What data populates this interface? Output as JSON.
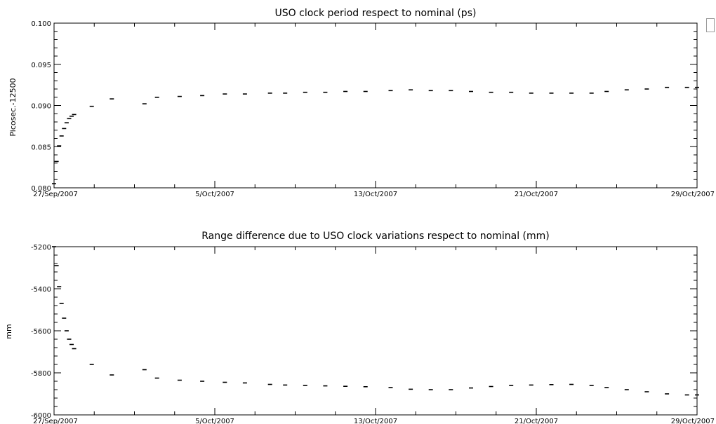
{
  "chart_data": [
    {
      "type": "scatter",
      "title": "USO clock period respect to nominal (ps)",
      "ylabel": "Picosec.-12500",
      "xlabel": "",
      "xlim": [
        "27/Sep/2007",
        "29/Oct/2007"
      ],
      "ylim": [
        0.08,
        0.1
      ],
      "x_tick_labels": [
        "27/Sep/2007",
        "5/Oct/2007",
        "13/Oct/2007",
        "21/Oct/2007",
        "29/Oct/2007"
      ],
      "y_tick_labels": [
        "0.100",
        "0.095",
        "0.090",
        "0.085",
        "0.080"
      ],
      "y_ticks": [
        0.1,
        0.095,
        0.09,
        0.085,
        0.08
      ],
      "grid": false,
      "series": [
        {
          "points": [
            [
              "27/Sep/2007 00:00",
              0.0805
            ],
            [
              "27/Sep/2007 03:00",
              0.0832
            ],
            [
              "27/Sep/2007 06:00",
              0.0851
            ],
            [
              "27/Sep/2007 09:00",
              0.0863
            ],
            [
              "27/Sep/2007 12:00",
              0.0872
            ],
            [
              "27/Sep/2007 15:00",
              0.0879
            ],
            [
              "27/Sep/2007 18:00",
              0.0884
            ],
            [
              "27/Sep/2007 21:00",
              0.0887
            ],
            [
              "28/Sep/2007 00:00",
              0.0889
            ],
            [
              "28/Sep/2007 21:00",
              0.0899
            ],
            [
              "29/Sep/2007 21:00",
              0.0908
            ],
            [
              "1/Oct/2007 12:00",
              0.0902
            ],
            [
              "2/Oct/2007 03:00",
              0.091
            ],
            [
              "3/Oct/2007 06:00",
              0.0911
            ],
            [
              "4/Oct/2007 09:00",
              0.0912
            ],
            [
              "5/Oct/2007 12:00",
              0.0914
            ],
            [
              "6/Oct/2007 12:00",
              0.0914
            ],
            [
              "7/Oct/2007 18:00",
              0.0915
            ],
            [
              "8/Oct/2007 12:00",
              0.0915
            ],
            [
              "9/Oct/2007 12:00",
              0.0916
            ],
            [
              "10/Oct/2007 12:00",
              0.0916
            ],
            [
              "11/Oct/2007 12:00",
              0.0917
            ],
            [
              "12/Oct/2007 12:00",
              0.0917
            ],
            [
              "13/Oct/2007 18:00",
              0.0918
            ],
            [
              "14/Oct/2007 18:00",
              0.0919
            ],
            [
              "15/Oct/2007 18:00",
              0.0918
            ],
            [
              "16/Oct/2007 18:00",
              0.0918
            ],
            [
              "17/Oct/2007 18:00",
              0.0917
            ],
            [
              "18/Oct/2007 18:00",
              0.0916
            ],
            [
              "19/Oct/2007 18:00",
              0.0916
            ],
            [
              "20/Oct/2007 18:00",
              0.0915
            ],
            [
              "21/Oct/2007 18:00",
              0.0915
            ],
            [
              "22/Oct/2007 18:00",
              0.0915
            ],
            [
              "23/Oct/2007 18:00",
              0.0915
            ],
            [
              "24/Oct/2007 12:00",
              0.0917
            ],
            [
              "25/Oct/2007 12:00",
              0.0919
            ],
            [
              "26/Oct/2007 12:00",
              0.092
            ],
            [
              "27/Oct/2007 12:00",
              0.0922
            ],
            [
              "28/Oct/2007 12:00",
              0.0922
            ],
            [
              "29/Oct/2007 00:00",
              0.0922
            ]
          ]
        }
      ]
    },
    {
      "type": "scatter",
      "title": "Range difference due to USO clock variations respect to nominal (mm)",
      "ylabel": "mm",
      "xlabel": "",
      "xlim": [
        "27/Sep/2007",
        "29/Oct/2007"
      ],
      "ylim": [
        -6000,
        -5200
      ],
      "x_tick_labels": [
        "27/Sep/2007",
        "5/Oct/2007",
        "13/Oct/2007",
        "21/Oct/2007",
        "29/Oct/2007"
      ],
      "y_tick_labels": [
        "-5200",
        "-5400",
        "-5600",
        "-5800",
        "-6000"
      ],
      "y_ticks": [
        -5200,
        -5400,
        -5600,
        -5800,
        -6000
      ],
      "grid": false,
      "series": [
        {
          "points": [
            [
              "27/Sep/2007 00:00",
              -5200
            ],
            [
              "27/Sep/2007 03:00",
              -5290
            ],
            [
              "27/Sep/2007 06:00",
              -5390
            ],
            [
              "27/Sep/2007 09:00",
              -5470
            ],
            [
              "27/Sep/2007 12:00",
              -5540
            ],
            [
              "27/Sep/2007 15:00",
              -5600
            ],
            [
              "27/Sep/2007 18:00",
              -5640
            ],
            [
              "27/Sep/2007 21:00",
              -5665
            ],
            [
              "28/Sep/2007 00:00",
              -5685
            ],
            [
              "28/Sep/2007 21:00",
              -5760
            ],
            [
              "29/Sep/2007 21:00",
              -5810
            ],
            [
              "1/Oct/2007 12:00",
              -5785
            ],
            [
              "2/Oct/2007 03:00",
              -5825
            ],
            [
              "3/Oct/2007 06:00",
              -5835
            ],
            [
              "4/Oct/2007 09:00",
              -5840
            ],
            [
              "5/Oct/2007 12:00",
              -5845
            ],
            [
              "6/Oct/2007 12:00",
              -5848
            ],
            [
              "7/Oct/2007 18:00",
              -5855
            ],
            [
              "8/Oct/2007 12:00",
              -5858
            ],
            [
              "9/Oct/2007 12:00",
              -5860
            ],
            [
              "10/Oct/2007 12:00",
              -5862
            ],
            [
              "11/Oct/2007 12:00",
              -5864
            ],
            [
              "12/Oct/2007 12:00",
              -5866
            ],
            [
              "13/Oct/2007 18:00",
              -5870
            ],
            [
              "14/Oct/2007 18:00",
              -5878
            ],
            [
              "15/Oct/2007 18:00",
              -5880
            ],
            [
              "16/Oct/2007 18:00",
              -5880
            ],
            [
              "17/Oct/2007 18:00",
              -5872
            ],
            [
              "18/Oct/2007 18:00",
              -5865
            ],
            [
              "19/Oct/2007 18:00",
              -5860
            ],
            [
              "20/Oct/2007 18:00",
              -5858
            ],
            [
              "21/Oct/2007 18:00",
              -5856
            ],
            [
              "22/Oct/2007 18:00",
              -5855
            ],
            [
              "23/Oct/2007 18:00",
              -5860
            ],
            [
              "24/Oct/2007 12:00",
              -5870
            ],
            [
              "25/Oct/2007 12:00",
              -5880
            ],
            [
              "26/Oct/2007 12:00",
              -5890
            ],
            [
              "27/Oct/2007 12:00",
              -5900
            ],
            [
              "28/Oct/2007 12:00",
              -5905
            ],
            [
              "29/Oct/2007 00:00",
              -5905
            ]
          ]
        }
      ]
    }
  ],
  "colors": {
    "marks": "#000000",
    "background": "#ffffff",
    "corner_box_border": "#9a9a9a"
  }
}
